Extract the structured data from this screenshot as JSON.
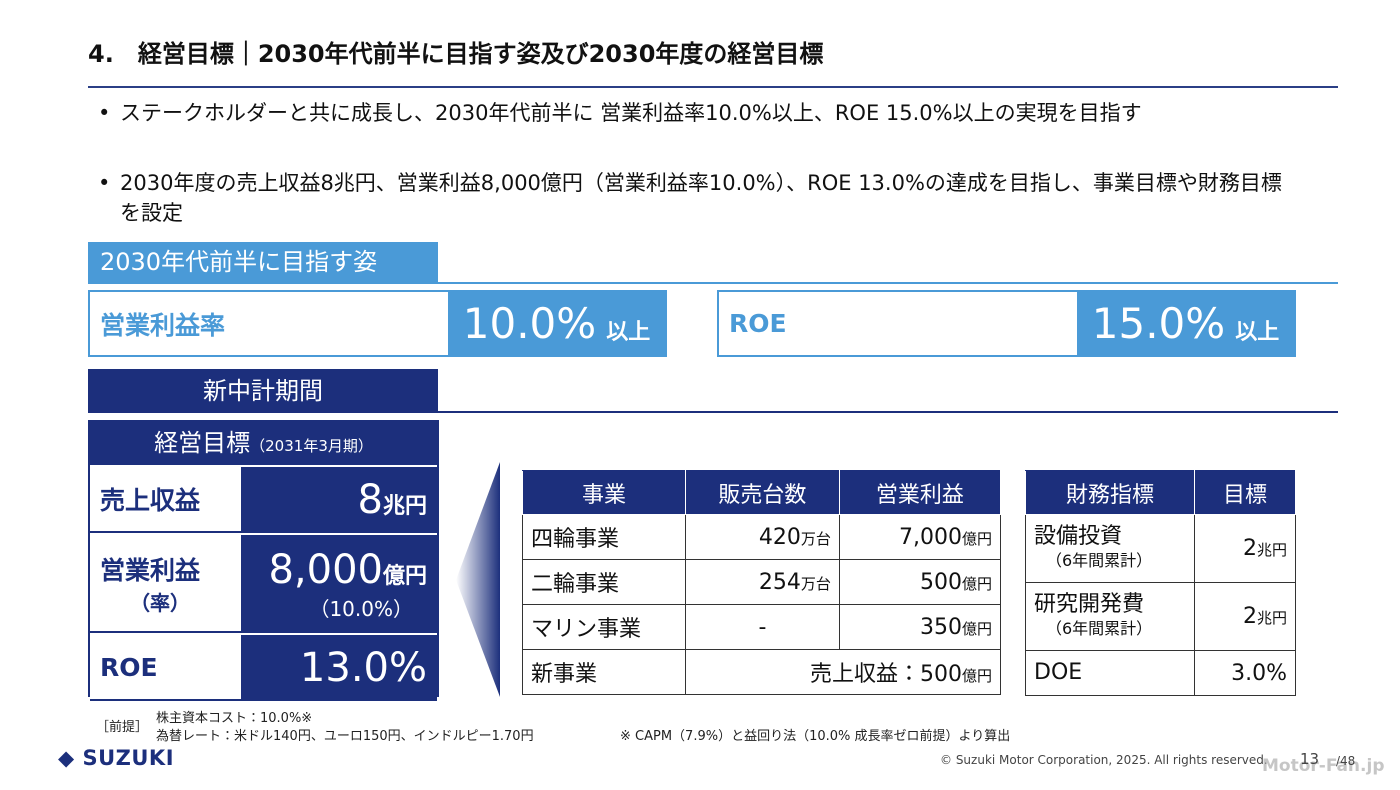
{
  "header": {
    "title": "4.　経営目標｜2030年代前半に目指す姿及び2030年度の経営目標"
  },
  "bullets": [
    "ステークホルダーと共に成長し、2030年代前半に 営業利益率10.0%以上、ROE 15.0%以上の実現を目指す",
    "2030年度の売上収益8兆円、営業利益8,000億円（営業利益率10.0%）、ROE 13.0%の達成を目指し、事業目標や財務目標を設定"
  ],
  "vision": {
    "heading": "2030年代前半に目指す姿",
    "targets": [
      {
        "label": "営業利益率",
        "value": "10.0%",
        "suffix": "以上"
      },
      {
        "label": "ROE",
        "value": "15.0%",
        "suffix": "以上"
      }
    ]
  },
  "plan": {
    "heading": "新中計期間",
    "goals": {
      "title": "経営目標",
      "period": "（2031年3月期）",
      "rows": [
        {
          "label": "売上収益",
          "num": "8",
          "unit": "兆円"
        },
        {
          "label": "営業利益",
          "sublabel": "（率）",
          "num": "8,000",
          "unit": "億円",
          "sub": "（10.0%）"
        },
        {
          "label": "ROE",
          "num": "13.0%"
        }
      ]
    },
    "business": {
      "headers": [
        "事業",
        "販売台数",
        "営業利益"
      ],
      "rows": [
        {
          "name": "四輪事業",
          "units": {
            "num": "420",
            "unit": "万台"
          },
          "profit": {
            "num": "7,000",
            "unit": "億円"
          }
        },
        {
          "name": "二輪事業",
          "units": {
            "num": "254",
            "unit": "万台"
          },
          "profit": {
            "num": "500",
            "unit": "億円"
          }
        },
        {
          "name": "マリン事業",
          "units": {
            "num": "-"
          },
          "profit": {
            "num": "350",
            "unit": "億円"
          }
        },
        {
          "name": "新事業",
          "merged": {
            "num": "売上収益：500",
            "unit": "億円"
          }
        }
      ]
    },
    "finance": {
      "headers": [
        "財務指標",
        "目標"
      ],
      "rows": [
        {
          "name": "設備投資",
          "note": "（6年間累計）",
          "num": "2",
          "unit": "兆円"
        },
        {
          "name": "研究開発費",
          "note": "（6年間累計）",
          "num": "2",
          "unit": "兆円"
        },
        {
          "name": "DOE",
          "num": "3.0%"
        }
      ]
    }
  },
  "footnote": {
    "label": "［前提］",
    "lines": [
      "株主資本コスト：10.0%※",
      "為替レート：米ドル140円、ユーロ150円、インドルピー1.70円"
    ],
    "note": "※ CAPM（7.9%）と益回り法（10.0% 成長率ゼロ前提）より算出"
  },
  "footer": {
    "logo": "SUZUKI",
    "copyright": "© Suzuki Motor Corporation, 2025. All rights reserved.",
    "page": "13",
    "total": "/48",
    "watermark": "Motor-Fan.jp"
  }
}
